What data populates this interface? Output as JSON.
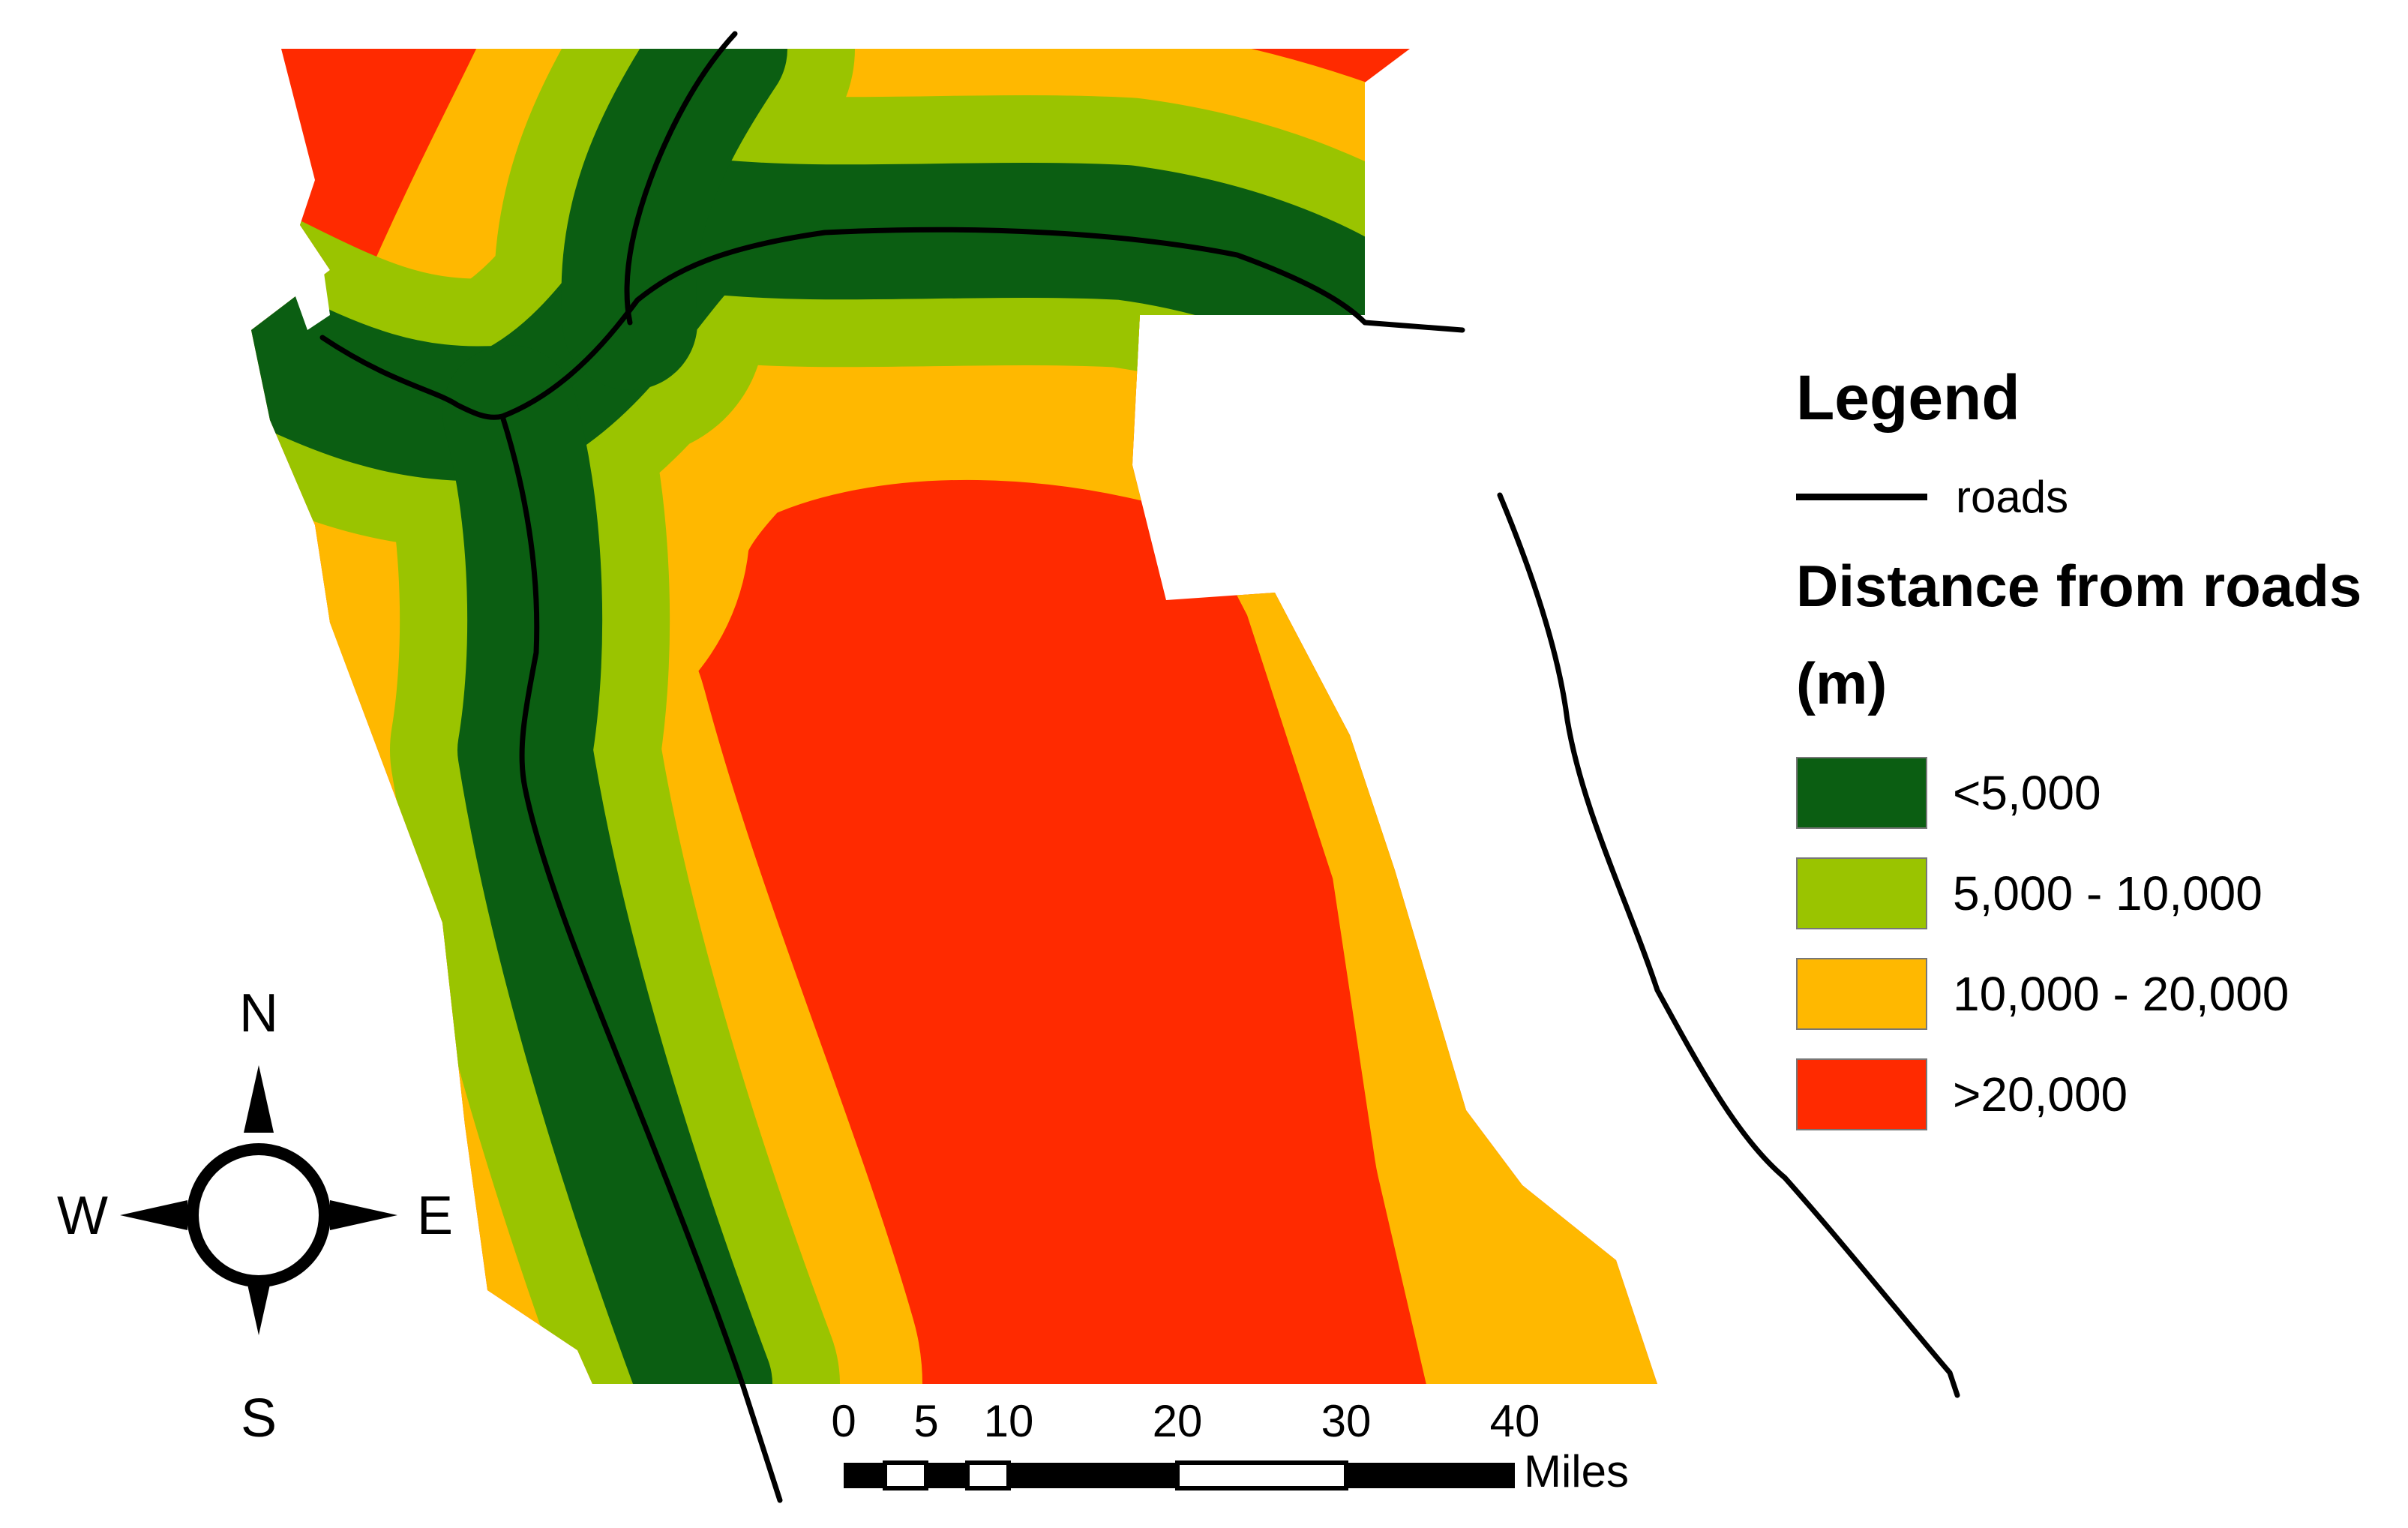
{
  "legend": {
    "title": "Legend",
    "line_label": "roads",
    "raster_title": "Distance from roads (m)",
    "classes": [
      {
        "label": "<5,000",
        "color": "#0b5e12"
      },
      {
        "label": "5,000 - 10,000",
        "color": "#9ac400"
      },
      {
        "label": "10,000 - 20,000",
        "color": "#ffb800"
      },
      {
        "label": ">20,000",
        "color": "#ff2a00"
      }
    ],
    "road_color": "#000000"
  },
  "compass": {
    "n": "N",
    "s": "S",
    "e": "E",
    "w": "W"
  },
  "scale_bar": {
    "ticks": [
      "0",
      "5",
      "10",
      "20",
      "30",
      "40"
    ],
    "unit": "Miles"
  }
}
